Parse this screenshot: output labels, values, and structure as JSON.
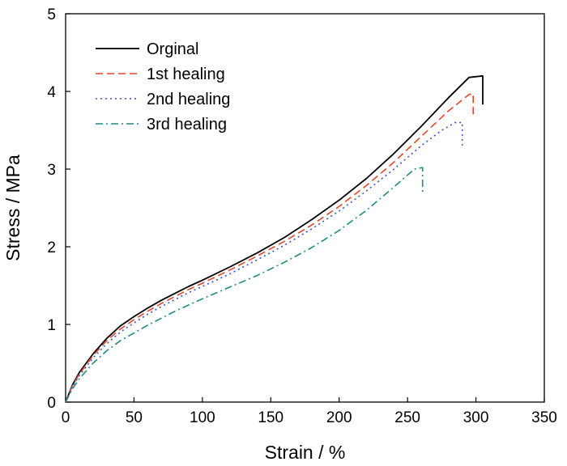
{
  "chart_data": {
    "type": "line",
    "xlabel": "Strain / %",
    "ylabel": "Stress / MPa",
    "xlim": [
      0,
      350
    ],
    "ylim": [
      0,
      5
    ],
    "xticks": [
      0,
      50,
      100,
      150,
      200,
      250,
      300,
      350
    ],
    "yticks": [
      0,
      1,
      2,
      3,
      4,
      5
    ],
    "grid": false,
    "legend_position": "top-left",
    "series": [
      {
        "name": "Orginal",
        "color": "#000000",
        "dash": "solid",
        "x": [
          0,
          5,
          10,
          20,
          30,
          40,
          50,
          60,
          70,
          80,
          90,
          100,
          120,
          140,
          160,
          180,
          200,
          220,
          240,
          260,
          280,
          295,
          305,
          305
        ],
        "y": [
          0,
          0.22,
          0.38,
          0.62,
          0.82,
          0.98,
          1.1,
          1.21,
          1.31,
          1.4,
          1.49,
          1.57,
          1.74,
          1.92,
          2.12,
          2.35,
          2.6,
          2.88,
          3.2,
          3.55,
          3.92,
          4.18,
          4.2,
          3.83
        ]
      },
      {
        "name": "1st healing",
        "color": "#e8452a",
        "dash": "dashed",
        "x": [
          0,
          5,
          10,
          20,
          30,
          40,
          50,
          60,
          70,
          80,
          90,
          100,
          120,
          140,
          160,
          180,
          200,
          220,
          240,
          260,
          280,
          295,
          298,
          298
        ],
        "y": [
          0,
          0.21,
          0.36,
          0.6,
          0.79,
          0.94,
          1.06,
          1.17,
          1.27,
          1.36,
          1.45,
          1.53,
          1.7,
          1.88,
          2.07,
          2.28,
          2.52,
          2.79,
          3.09,
          3.42,
          3.75,
          3.96,
          3.97,
          3.67
        ]
      },
      {
        "name": "2nd healing",
        "color": "#3a4fc4",
        "dash": "dotted",
        "x": [
          0,
          5,
          10,
          20,
          30,
          40,
          50,
          60,
          70,
          80,
          90,
          100,
          120,
          140,
          160,
          180,
          200,
          220,
          240,
          260,
          275,
          285,
          290,
          290
        ],
        "y": [
          0,
          0.2,
          0.34,
          0.57,
          0.75,
          0.9,
          1.02,
          1.13,
          1.23,
          1.32,
          1.41,
          1.49,
          1.65,
          1.83,
          2.02,
          2.23,
          2.46,
          2.72,
          3.0,
          3.3,
          3.5,
          3.6,
          3.6,
          3.27
        ]
      },
      {
        "name": "3rd healing",
        "color": "#1f8a85",
        "dash": "dashdot",
        "x": [
          0,
          5,
          10,
          20,
          30,
          40,
          50,
          60,
          70,
          80,
          90,
          100,
          120,
          140,
          160,
          180,
          200,
          220,
          240,
          255,
          261,
          261
        ],
        "y": [
          0,
          0.17,
          0.3,
          0.5,
          0.66,
          0.79,
          0.89,
          0.99,
          1.08,
          1.17,
          1.25,
          1.33,
          1.48,
          1.63,
          1.8,
          1.99,
          2.21,
          2.47,
          2.77,
          3.0,
          3.02,
          2.68
        ]
      }
    ]
  }
}
